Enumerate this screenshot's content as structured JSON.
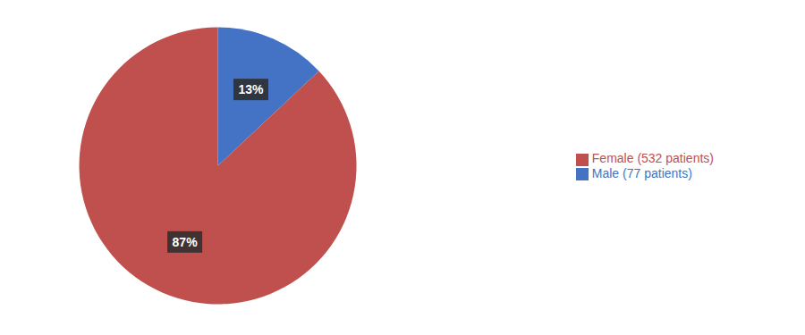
{
  "chart_data": {
    "type": "pie",
    "categories": [
      "Male (77 patients)",
      "Female (532 patients)"
    ],
    "values": [
      13,
      87
    ],
    "value_labels": [
      "13%",
      "87%"
    ],
    "colors": [
      "#4472C4",
      "#C0504D"
    ],
    "legend": "right",
    "data_labels": true
  }
}
